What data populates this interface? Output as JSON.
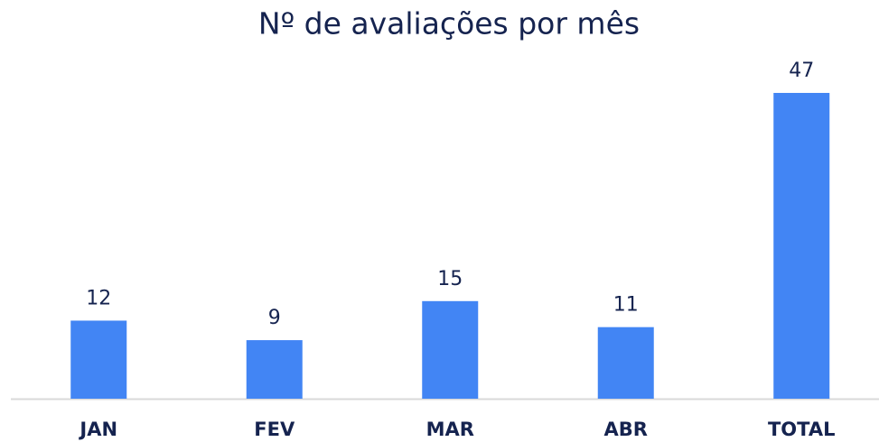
{
  "chart_data": {
    "type": "bar",
    "title": "Nº de avaliações por mês",
    "categories": [
      "JAN",
      "FEV",
      "MAR",
      "ABR",
      "TOTAL"
    ],
    "values": [
      12,
      9,
      15,
      11,
      47
    ],
    "color": "#4285f4"
  }
}
